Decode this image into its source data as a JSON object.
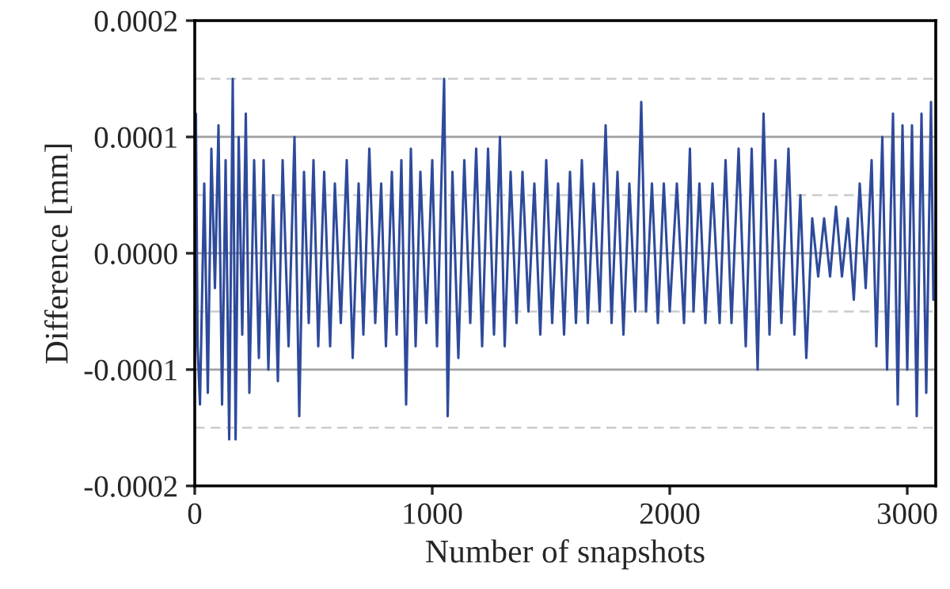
{
  "chart_data": {
    "type": "line",
    "xlabel": "Number of snapshots",
    "ylabel": "Difference [mm]",
    "xlim": [
      0,
      3120
    ],
    "xticks": [
      0,
      1000,
      2000,
      3000
    ],
    "ylim": [
      -0.0002,
      0.0002
    ],
    "yticks": [
      {
        "value": -0.0002,
        "label": "-0.0002"
      },
      {
        "value": -0.0001,
        "label": "-0.0001"
      },
      {
        "value": 0,
        "label": "0.0000"
      },
      {
        "value": 0.0001,
        "label": "0.0001"
      },
      {
        "value": 0.0002,
        "label": "0.0002"
      }
    ],
    "grid": "y",
    "legend": false,
    "marker": "none",
    "line_style": "solid",
    "ref_lines": [
      {
        "axis": "y",
        "value": 0.00015,
        "color": "#cccccc",
        "line_style": "dashed"
      },
      {
        "axis": "y",
        "value": 5e-05,
        "color": "#cccccc",
        "line_style": "dashed"
      },
      {
        "axis": "y",
        "value": -5e-05,
        "color": "#cccccc",
        "line_style": "dashed"
      },
      {
        "axis": "y",
        "value": -0.00015,
        "color": "#cccccc",
        "line_style": "dashed"
      }
    ],
    "series": [
      {
        "color": "#2e4a9b",
        "x": [
          5,
          12,
          22,
          40,
          55,
          70,
          85,
          100,
          115,
          130,
          145,
          160,
          172,
          185,
          200,
          215,
          230,
          250,
          270,
          290,
          310,
          330,
          350,
          370,
          395,
          420,
          440,
          460,
          480,
          500,
          520,
          545,
          570,
          590,
          615,
          640,
          665,
          690,
          710,
          735,
          760,
          785,
          805,
          830,
          850,
          870,
          890,
          910,
          930,
          950,
          975,
          1000,
          1020,
          1050,
          1065,
          1085,
          1110,
          1135,
          1160,
          1185,
          1210,
          1235,
          1260,
          1285,
          1305,
          1330,
          1355,
          1380,
          1405,
          1430,
          1455,
          1480,
          1505,
          1530,
          1555,
          1580,
          1605,
          1630,
          1655,
          1680,
          1705,
          1730,
          1755,
          1780,
          1805,
          1830,
          1855,
          1880,
          1900,
          1925,
          1950,
          1975,
          2000,
          2030,
          2060,
          2085,
          2100,
          2125,
          2150,
          2180,
          2210,
          2235,
          2260,
          2290,
          2320,
          2345,
          2370,
          2395,
          2420,
          2445,
          2470,
          2500,
          2525,
          2550,
          2575,
          2600,
          2625,
          2650,
          2675,
          2700,
          2725,
          2750,
          2775,
          2800,
          2825,
          2850,
          2870,
          2895,
          2915,
          2940,
          2960,
          2980,
          3000,
          3020,
          3040,
          3060,
          3080,
          3100,
          3110
        ],
        "values": [
          0.00012,
          -8e-05,
          -0.00013,
          6e-05,
          -0.00012,
          9e-05,
          -3e-05,
          0.00011,
          -0.00013,
          8e-05,
          -0.00016,
          0.00015,
          -0.00016,
          0.0001,
          -7e-05,
          0.00012,
          -0.00012,
          8e-05,
          -9e-05,
          8e-05,
          -0.0001,
          5e-05,
          -0.00011,
          8e-05,
          -8e-05,
          0.0001,
          -0.00014,
          7e-05,
          -6e-05,
          8e-05,
          -8e-05,
          7e-05,
          -8e-05,
          6e-05,
          -6e-05,
          8e-05,
          -9e-05,
          6e-05,
          -7e-05,
          9e-05,
          -6e-05,
          6e-05,
          -8e-05,
          7e-05,
          -7e-05,
          8e-05,
          -0.00013,
          9e-05,
          -8e-05,
          7e-05,
          -6e-05,
          8e-05,
          -8e-05,
          0.00015,
          -0.00014,
          7e-05,
          -9e-05,
          8e-05,
          -6e-05,
          9e-05,
          -8e-05,
          9e-05,
          -7e-05,
          0.0001,
          -8e-05,
          7e-05,
          -6e-05,
          7e-05,
          -5e-05,
          6e-05,
          -7e-05,
          8e-05,
          -6e-05,
          6e-05,
          -7e-05,
          7e-05,
          -6e-05,
          8e-05,
          -6e-05,
          6e-05,
          -5e-05,
          0.00011,
          -6e-05,
          7e-05,
          -7e-05,
          6e-05,
          -5e-05,
          0.00013,
          -5e-05,
          6e-05,
          -6e-05,
          6e-05,
          -5e-05,
          6e-05,
          -6e-05,
          9e-05,
          -5e-05,
          6e-05,
          -6e-05,
          6e-05,
          -6e-05,
          8e-05,
          -6e-05,
          9e-05,
          -8e-05,
          9e-05,
          -0.0001,
          0.00012,
          -7e-05,
          8e-05,
          -6e-05,
          9e-05,
          -7e-05,
          5e-05,
          -9e-05,
          3e-05,
          -2e-05,
          3e-05,
          -2e-05,
          4e-05,
          -2e-05,
          3e-05,
          -4e-05,
          6e-05,
          -3e-05,
          8e-05,
          -8e-05,
          0.0001,
          -0.0001,
          0.00012,
          -0.00013,
          0.00011,
          -0.0001,
          0.00011,
          -0.00014,
          0.00012,
          -0.00012,
          0.00013,
          -4e-05
        ]
      }
    ]
  }
}
